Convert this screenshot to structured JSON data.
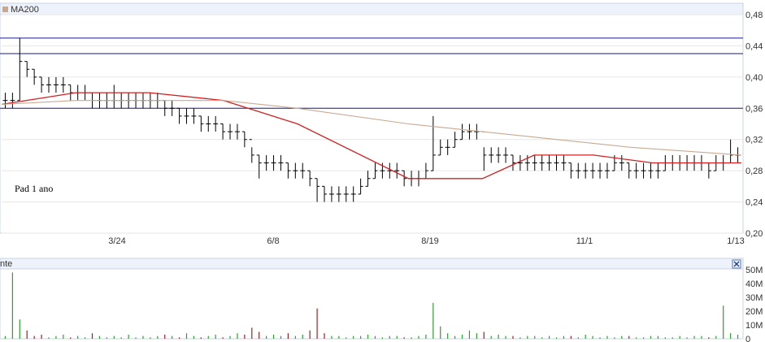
{
  "price_panel": {
    "legend_label": "MA200",
    "annotation": "Pad 1 ano",
    "x_tick_labels": [
      "3/24",
      "6/8",
      "8/19",
      "11/1",
      "1/13"
    ],
    "y_tick_labels": [
      "0,20",
      "0,24",
      "0,28",
      "0,32",
      "0,36",
      "0,40",
      "0,44",
      "0,48"
    ]
  },
  "volume_panel": {
    "title_fragment": "nte",
    "close_icon": "close-icon",
    "y_tick_labels": [
      "0",
      "10M",
      "20M",
      "30M",
      "40M",
      "50M"
    ]
  },
  "colors": {
    "background": "#ffffff",
    "panel_header": "#eef3fb",
    "panel_border": "#c8d3e6",
    "ohlc": "#000000",
    "ma_short": "#d42020",
    "ma200": "#c9a98f",
    "hline": "#1a1a8c",
    "volume_up": "#2e9e2e",
    "volume_down": "#a02020"
  },
  "chart_data": [
    {
      "type": "line",
      "title": "",
      "y_range": [
        0.2,
        0.48
      ],
      "y_ticks": [
        0.2,
        0.24,
        0.28,
        0.32,
        0.36,
        0.4,
        0.44,
        0.48
      ],
      "x_ticks": [
        "3/24",
        "6/8",
        "8/19",
        "11/1",
        "1/13"
      ],
      "horizontal_lines": [
        0.45,
        0.43,
        0.36
      ],
      "series": [
        {
          "kind": "ohlc",
          "close": [
            0.37,
            0.37,
            0.42,
            0.41,
            0.4,
            0.39,
            0.39,
            0.39,
            0.39,
            0.38,
            0.38,
            0.38,
            0.37,
            0.37,
            0.37,
            0.37,
            0.37,
            0.37,
            0.37,
            0.37,
            0.37,
            0.37,
            0.36,
            0.36,
            0.35,
            0.35,
            0.35,
            0.34,
            0.34,
            0.34,
            0.33,
            0.33,
            0.33,
            0.32,
            0.3,
            0.29,
            0.29,
            0.29,
            0.29,
            0.28,
            0.28,
            0.28,
            0.27,
            0.26,
            0.25,
            0.25,
            0.25,
            0.25,
            0.25,
            0.26,
            0.27,
            0.28,
            0.28,
            0.28,
            0.28,
            0.27,
            0.27,
            0.27,
            0.28,
            0.3,
            0.31,
            0.31,
            0.32,
            0.33,
            0.33,
            0.33,
            0.3,
            0.3,
            0.3,
            0.3,
            0.29,
            0.29,
            0.29,
            0.29,
            0.29,
            0.29,
            0.29,
            0.29,
            0.28,
            0.28,
            0.28,
            0.28,
            0.28,
            0.28,
            0.29,
            0.29,
            0.28,
            0.28,
            0.28,
            0.28,
            0.28,
            0.29,
            0.29,
            0.29,
            0.29,
            0.29,
            0.29,
            0.28,
            0.29,
            0.29,
            0.3,
            0.3
          ],
          "high": [
            0.38,
            0.38,
            0.45,
            0.42,
            0.41,
            0.4,
            0.4,
            0.4,
            0.4,
            0.39,
            0.39,
            0.39,
            0.38,
            0.38,
            0.38,
            0.39,
            0.38,
            0.38,
            0.38,
            0.38,
            0.38,
            0.38,
            0.37,
            0.37,
            0.36,
            0.36,
            0.36,
            0.35,
            0.35,
            0.35,
            0.34,
            0.34,
            0.34,
            0.33,
            0.31,
            0.3,
            0.3,
            0.3,
            0.3,
            0.29,
            0.29,
            0.29,
            0.28,
            0.27,
            0.26,
            0.26,
            0.26,
            0.26,
            0.26,
            0.27,
            0.28,
            0.29,
            0.29,
            0.29,
            0.29,
            0.28,
            0.28,
            0.28,
            0.29,
            0.35,
            0.32,
            0.32,
            0.33,
            0.34,
            0.34,
            0.34,
            0.31,
            0.31,
            0.31,
            0.31,
            0.3,
            0.3,
            0.3,
            0.3,
            0.3,
            0.3,
            0.3,
            0.3,
            0.29,
            0.29,
            0.29,
            0.29,
            0.29,
            0.29,
            0.3,
            0.3,
            0.29,
            0.29,
            0.29,
            0.29,
            0.29,
            0.3,
            0.3,
            0.3,
            0.3,
            0.3,
            0.3,
            0.29,
            0.3,
            0.3,
            0.32,
            0.31
          ],
          "low": [
            0.36,
            0.36,
            0.37,
            0.4,
            0.39,
            0.38,
            0.38,
            0.38,
            0.38,
            0.37,
            0.37,
            0.37,
            0.36,
            0.36,
            0.36,
            0.36,
            0.36,
            0.36,
            0.36,
            0.36,
            0.36,
            0.36,
            0.35,
            0.35,
            0.34,
            0.34,
            0.34,
            0.33,
            0.33,
            0.33,
            0.32,
            0.32,
            0.32,
            0.31,
            0.29,
            0.27,
            0.28,
            0.28,
            0.28,
            0.27,
            0.27,
            0.27,
            0.26,
            0.24,
            0.24,
            0.24,
            0.24,
            0.24,
            0.24,
            0.25,
            0.26,
            0.27,
            0.27,
            0.27,
            0.27,
            0.26,
            0.26,
            0.26,
            0.27,
            0.28,
            0.3,
            0.3,
            0.31,
            0.32,
            0.32,
            0.32,
            0.28,
            0.29,
            0.29,
            0.29,
            0.28,
            0.28,
            0.28,
            0.28,
            0.28,
            0.28,
            0.28,
            0.28,
            0.27,
            0.27,
            0.27,
            0.27,
            0.27,
            0.27,
            0.28,
            0.28,
            0.27,
            0.27,
            0.27,
            0.27,
            0.27,
            0.28,
            0.28,
            0.28,
            0.28,
            0.28,
            0.28,
            0.27,
            0.28,
            0.28,
            0.29,
            0.29
          ]
        },
        {
          "kind": "line",
          "color_key": "ma_short",
          "x": [
            0,
            10,
            20,
            30,
            40,
            55,
            65,
            72,
            80,
            88,
            95,
            100
          ],
          "y": [
            0.365,
            0.38,
            0.38,
            0.37,
            0.34,
            0.27,
            0.27,
            0.3,
            0.3,
            0.29,
            0.29,
            0.29
          ]
        },
        {
          "kind": "line",
          "name": "MA200",
          "color_key": "ma200",
          "x": [
            0,
            10,
            20,
            30,
            40,
            55,
            65,
            75,
            85,
            100
          ],
          "y": [
            0.365,
            0.37,
            0.37,
            0.37,
            0.36,
            0.34,
            0.33,
            0.32,
            0.31,
            0.3
          ]
        }
      ]
    },
    {
      "type": "bar",
      "title": "",
      "y_range": [
        0,
        50000000
      ],
      "y_ticks": [
        0,
        10000000,
        20000000,
        30000000,
        40000000,
        50000000
      ],
      "values_millions": [
        2,
        48,
        14,
        6,
        2,
        3,
        1,
        2,
        3,
        1,
        2,
        1,
        4,
        2,
        1,
        2,
        1,
        3,
        1,
        2,
        1,
        2,
        3,
        2,
        1,
        4,
        2,
        1,
        2,
        3,
        1,
        2,
        4,
        3,
        8,
        5,
        2,
        3,
        2,
        4,
        2,
        3,
        6,
        22,
        4,
        2,
        2,
        1,
        2,
        2,
        3,
        2,
        1,
        2,
        2,
        1,
        1,
        2,
        3,
        26,
        9,
        4,
        2,
        3,
        6,
        4,
        5,
        2,
        3,
        2,
        2,
        1,
        2,
        2,
        1,
        2,
        1,
        2,
        2,
        1,
        3,
        2,
        1,
        2,
        1,
        2,
        2,
        1,
        1,
        2,
        2,
        1,
        1,
        2,
        1,
        2,
        2,
        1,
        2,
        24,
        4,
        3
      ]
    }
  ]
}
